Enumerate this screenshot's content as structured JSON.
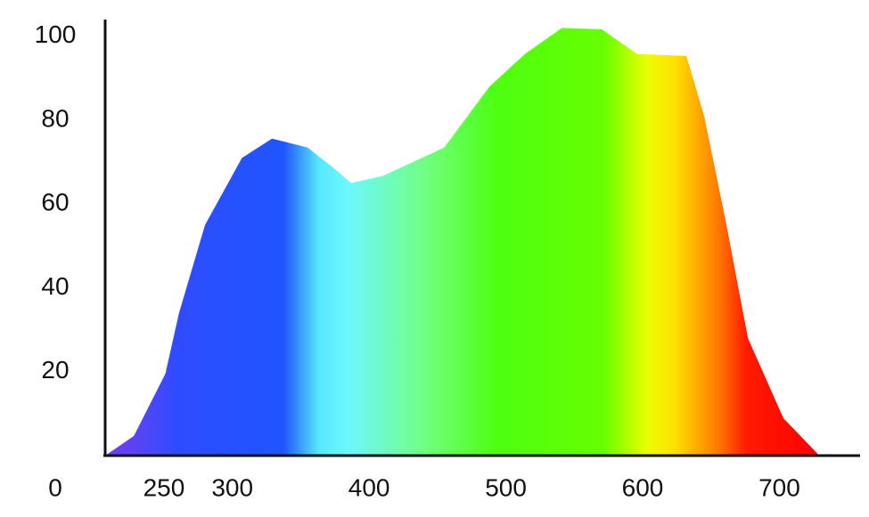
{
  "chart_data": {
    "type": "area",
    "x": [
      207,
      228,
      251,
      261,
      280,
      307,
      329,
      355,
      374,
      387,
      410,
      455,
      488,
      514,
      541,
      570,
      596,
      632,
      645,
      661,
      677,
      703,
      728
    ],
    "values": [
      0,
      4.7,
      19.5,
      34,
      55,
      71,
      75.6,
      73.5,
      68.6,
      65,
      66.7,
      73.5,
      88,
      95.8,
      102,
      101.7,
      95.8,
      95.3,
      81,
      55.5,
      28,
      8.9,
      0.4
    ],
    "xlim": [
      207,
      759
    ],
    "ylim": [
      0,
      104
    ],
    "xticks": [
      250,
      300,
      400,
      500,
      600,
      700
    ],
    "yticks": [
      0,
      20,
      40,
      60,
      80,
      100
    ],
    "grid": false
  }
}
